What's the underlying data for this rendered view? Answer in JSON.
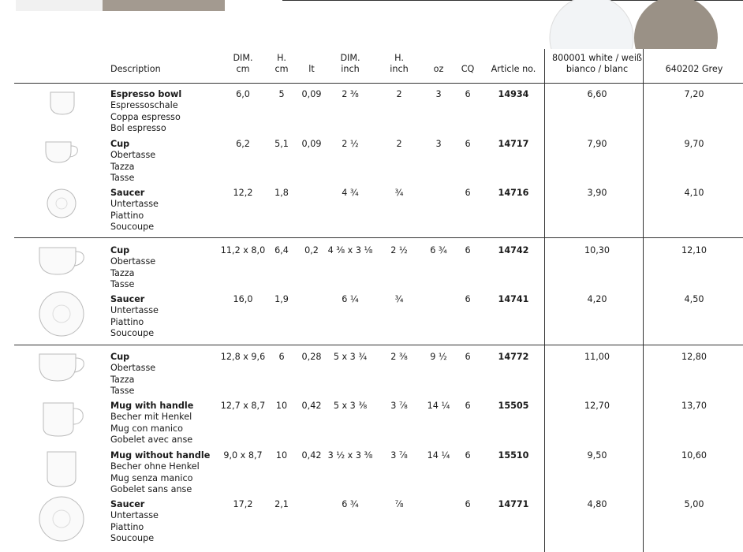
{
  "headers": [
    [
      "Description"
    ],
    [
      "DIM.",
      "cm"
    ],
    [
      "H.",
      "cm"
    ],
    [
      "lt"
    ],
    [
      "DIM.",
      "inch"
    ],
    [
      "H.",
      "inch"
    ],
    [
      "oz"
    ],
    [
      "CQ"
    ],
    [
      "Article no."
    ],
    [
      "800001 white / weiß",
      "bianco / blanc"
    ],
    [
      "640202 Grey"
    ]
  ],
  "groups": [
    [
      {
        "name": [
          "Espresso bowl",
          "Espressoschale",
          "Coppa espresso",
          "Bol espresso"
        ],
        "cells": [
          "6,0",
          "5",
          "0,09",
          "2 ⅜",
          "2",
          "3",
          "6",
          "14934",
          "6,60",
          "7,20"
        ]
      },
      {
        "name": [
          "Cup",
          "Obertasse",
          "Tazza",
          "Tasse"
        ],
        "cells": [
          "6,2",
          "5,1",
          "0,09",
          "2 ½",
          "2",
          "3",
          "6",
          "14717",
          "7,90",
          "9,70"
        ]
      },
      {
        "name": [
          "Saucer",
          "Untertasse",
          "Piattino",
          "Soucoupe"
        ],
        "cells": [
          "12,2",
          "1,8",
          null,
          "4 ¾",
          "¾",
          null,
          "6",
          "14716",
          "3,90",
          "4,10"
        ]
      }
    ],
    [
      {
        "name": [
          "Cup",
          "Obertasse",
          "Tazza",
          "Tasse"
        ],
        "cells": [
          "11,2 x 8,0",
          "6,4",
          "0,2",
          "4 ⅜ x 3 ⅛",
          "2 ½",
          "6 ¾",
          "6",
          "14742",
          "10,30",
          "12,10"
        ]
      },
      {
        "name": [
          "Saucer",
          "Untertasse",
          "Piattino",
          "Soucoupe"
        ],
        "cells": [
          "16,0",
          "1,9",
          null,
          "6 ¼",
          "¾",
          null,
          "6",
          "14741",
          "4,20",
          "4,50"
        ]
      }
    ],
    [
      {
        "name": [
          "Cup",
          "Obertasse",
          "Tazza",
          "Tasse"
        ],
        "cells": [
          "12,8 x 9,6",
          "6",
          "0,28",
          "5 x 3 ¾",
          "2 ⅜",
          "9 ½",
          "6",
          "14772",
          "11,00",
          "12,80"
        ]
      },
      {
        "name": [
          "Mug with handle",
          "Becher mit Henkel",
          "Mug con manico",
          "Gobelet avec anse"
        ],
        "cells": [
          "12,7 x 8,7",
          "10",
          "0,42",
          "5 x 3 ⅜",
          "3 ⅞",
          "14 ¼",
          "6",
          "15505",
          "12,70",
          "13,70"
        ]
      },
      {
        "name": [
          "Mug without handle",
          "Becher ohne Henkel",
          "Mug senza manico",
          "Gobelet sans anse"
        ],
        "cells": [
          "9,0 x 8,7",
          "10",
          "0,42",
          "3 ½ x 3 ⅜",
          "3 ⅞",
          "14 ¼",
          "6",
          "15510",
          "9,50",
          "10,60"
        ]
      },
      {
        "name": [
          "Saucer",
          "Untertasse",
          "Piattino",
          "Soucoupe"
        ],
        "cells": [
          "17,2",
          "2,1",
          null,
          "6 ¾",
          "⅞",
          null,
          "6",
          "14771",
          "4,80",
          "5,00"
        ]
      }
    ]
  ]
}
